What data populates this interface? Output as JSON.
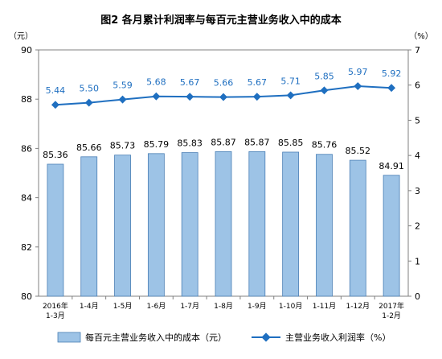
{
  "chart_data": {
    "type": "bar+line",
    "title": "图2  各月累计利润率与每百元主营业务收入中的成本",
    "left_unit": "（元）",
    "right_unit": "（%）",
    "categories": [
      [
        "2016年",
        "1-3月"
      ],
      [
        "1-4月"
      ],
      [
        "1-5月"
      ],
      [
        "1-6月"
      ],
      [
        "1-7月"
      ],
      [
        "1-8月"
      ],
      [
        "1-9月"
      ],
      [
        "1-10月"
      ],
      [
        "1-11月"
      ],
      [
        "1-12月"
      ],
      [
        "2017年",
        "1-2月"
      ]
    ],
    "series": [
      {
        "name": "每百元主营业务收入中的成本（元）",
        "kind": "bar",
        "axis": "left",
        "values": [
          85.36,
          85.66,
          85.73,
          85.79,
          85.83,
          85.87,
          85.87,
          85.85,
          85.76,
          85.52,
          84.91
        ],
        "labels": [
          "85.36",
          "85.66",
          "85.73",
          "85.79",
          "85.83",
          "85.87",
          "85.87",
          "85.85",
          "85.76",
          "85.52",
          "84.91"
        ],
        "color": "#9dc3e6"
      },
      {
        "name": "主营业务收入利润率（%）",
        "kind": "line",
        "axis": "right",
        "values": [
          5.44,
          5.5,
          5.59,
          5.68,
          5.67,
          5.66,
          5.67,
          5.71,
          5.85,
          5.97,
          5.92
        ],
        "labels": [
          "5.44",
          "5.50",
          "5.59",
          "5.68",
          "5.67",
          "5.66",
          "5.67",
          "5.71",
          "5.85",
          "5.97",
          "5.92"
        ],
        "color": "#1f6fc0"
      }
    ],
    "y_left": {
      "min": 80,
      "max": 90,
      "ticks": [
        "80",
        "82",
        "84",
        "86",
        "88",
        "90"
      ]
    },
    "y_right": {
      "min": 0,
      "max": 7,
      "ticks": [
        "0",
        "1",
        "2",
        "3",
        "4",
        "5",
        "6",
        "7"
      ]
    },
    "grid": false,
    "legend_position": "bottom"
  }
}
